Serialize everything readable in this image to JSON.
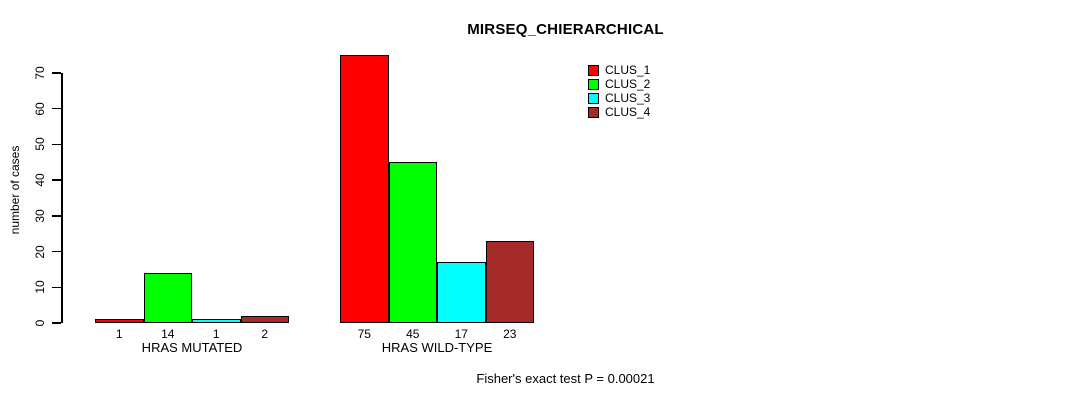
{
  "chart_data": {
    "type": "bar",
    "title": "MIRSEQ_CHIERARCHICAL",
    "xlabel": "",
    "ylabel": "number of cases",
    "ylim": [
      0,
      70
    ],
    "yticks": [
      0,
      10,
      20,
      30,
      40,
      50,
      60,
      70
    ],
    "categories": [
      "HRAS MUTATED",
      "HRAS WILD-TYPE"
    ],
    "series": [
      {
        "name": "CLUS_1",
        "color": "#ff0000",
        "values": [
          1,
          75
        ]
      },
      {
        "name": "CLUS_2",
        "color": "#00ff00",
        "values": [
          14,
          45
        ]
      },
      {
        "name": "CLUS_3",
        "color": "#00ffff",
        "values": [
          1,
          17
        ]
      },
      {
        "name": "CLUS_4",
        "color": "#a52a2a",
        "values": [
          2,
          23
        ]
      }
    ],
    "bar_value_labels_shown": true,
    "legend_position": "top-right",
    "legend_frame": false,
    "grid": false,
    "background_color": "#ffffff",
    "axis_color": "#000000",
    "bar_border_color": "#000000",
    "annotation": "Fisher's exact test P = 0.00021"
  }
}
